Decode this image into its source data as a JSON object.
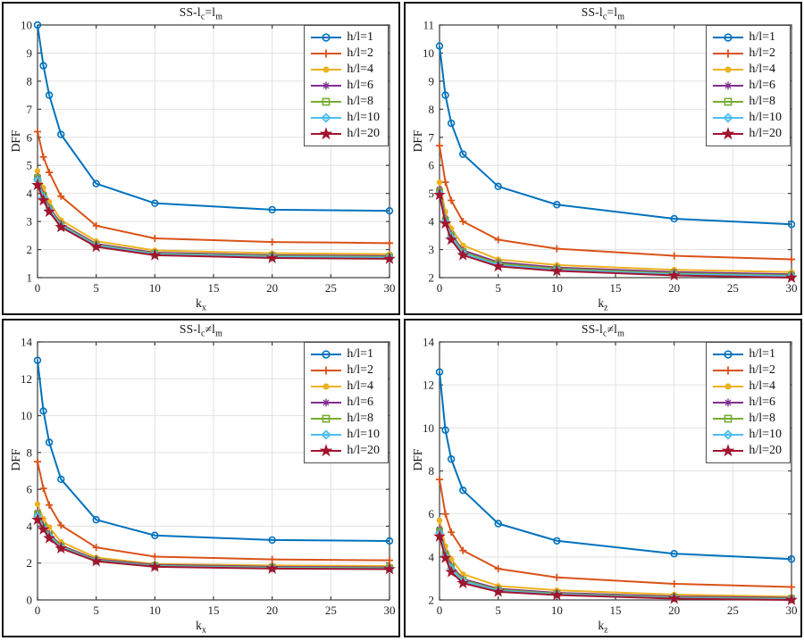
{
  "figure": {
    "ylabel": "DFF",
    "grid_color": "#e2e2e2",
    "axis_color": "#3d3d3d",
    "panel_border_color": "#0d0d0d"
  },
  "chart_data": {
    "note": "see charts[] — four line charts sharing series structure"
  },
  "charts": [
    {
      "type": "line",
      "title": {
        "prefix": "SS-l",
        "sub1": "c",
        "mid": "=l",
        "sub2": "m"
      },
      "xlabel": {
        "base": "k",
        "sub": "x"
      },
      "ylabel": "DFF",
      "xlim": [
        0,
        30
      ],
      "ylim": [
        1,
        10
      ],
      "xticks": [
        0,
        5,
        10,
        15,
        20,
        25,
        30
      ],
      "yticks": [
        1,
        2,
        3,
        4,
        5,
        6,
        7,
        8,
        9,
        10
      ],
      "x": [
        0,
        0.5,
        1,
        2,
        5,
        10,
        20,
        30
      ],
      "series": [
        {
          "label": "h/l=1",
          "color": "#0072BD",
          "marker": "circle",
          "values": [
            10.0,
            8.55,
            7.5,
            6.1,
            4.35,
            3.65,
            3.42,
            3.38
          ]
        },
        {
          "label": "h/l=2",
          "color": "#D95319",
          "marker": "plus",
          "values": [
            6.2,
            5.3,
            4.75,
            3.9,
            2.85,
            2.4,
            2.27,
            2.23
          ]
        },
        {
          "label": "h/l=4",
          "color": "#EDB120",
          "marker": "dot",
          "values": [
            4.8,
            4.2,
            3.7,
            3.05,
            2.3,
            1.97,
            1.87,
            1.84
          ]
        },
        {
          "label": "h/l=6",
          "color": "#7E2F8E",
          "marker": "asterisk",
          "values": [
            4.6,
            3.97,
            3.5,
            2.92,
            2.2,
            1.89,
            1.8,
            1.77
          ]
        },
        {
          "label": "h/l=8",
          "color": "#77AC30",
          "marker": "square",
          "values": [
            4.55,
            3.92,
            3.46,
            2.88,
            2.17,
            1.86,
            1.77,
            1.74
          ]
        },
        {
          "label": "h/l=10",
          "color": "#4DBEEE",
          "marker": "diamond",
          "values": [
            4.48,
            3.86,
            3.42,
            2.85,
            2.14,
            1.83,
            1.74,
            1.71
          ]
        },
        {
          "label": "h/l=20",
          "color": "#A2142F",
          "marker": "star",
          "values": [
            4.3,
            3.75,
            3.35,
            2.8,
            2.1,
            1.8,
            1.7,
            1.67
          ]
        }
      ]
    },
    {
      "type": "line",
      "title": {
        "prefix": "SS-l",
        "sub1": "c",
        "mid": "=l",
        "sub2": "m"
      },
      "xlabel": {
        "base": "k",
        "sub": "z"
      },
      "ylabel": "DFF",
      "xlim": [
        0,
        30
      ],
      "ylim": [
        2,
        11
      ],
      "xticks": [
        0,
        5,
        10,
        15,
        20,
        25,
        30
      ],
      "yticks": [
        2,
        3,
        4,
        5,
        6,
        7,
        8,
        9,
        10,
        11
      ],
      "x": [
        0,
        0.5,
        1,
        2,
        5,
        10,
        20,
        30
      ],
      "series": [
        {
          "label": "h/l=1",
          "color": "#0072BD",
          "marker": "circle",
          "values": [
            10.25,
            8.5,
            7.5,
            6.4,
            5.25,
            4.6,
            4.1,
            3.9
          ]
        },
        {
          "label": "h/l=2",
          "color": "#D95319",
          "marker": "plus",
          "values": [
            6.7,
            5.4,
            4.75,
            4.0,
            3.35,
            3.03,
            2.78,
            2.65
          ]
        },
        {
          "label": "h/l=4",
          "color": "#EDB120",
          "marker": "dot",
          "values": [
            5.4,
            4.35,
            3.75,
            3.15,
            2.65,
            2.45,
            2.28,
            2.2
          ]
        },
        {
          "label": "h/l=6",
          "color": "#7E2F8E",
          "marker": "asterisk",
          "values": [
            5.15,
            4.1,
            3.55,
            2.97,
            2.55,
            2.36,
            2.2,
            2.12
          ]
        },
        {
          "label": "h/l=8",
          "color": "#77AC30",
          "marker": "square",
          "values": [
            5.07,
            4.04,
            3.5,
            2.92,
            2.5,
            2.32,
            2.15,
            2.08
          ]
        },
        {
          "label": "h/l=10",
          "color": "#4DBEEE",
          "marker": "diamond",
          "values": [
            5.0,
            3.99,
            3.45,
            2.87,
            2.45,
            2.28,
            2.12,
            2.05
          ]
        },
        {
          "label": "h/l=20",
          "color": "#A2142F",
          "marker": "star",
          "values": [
            4.95,
            3.93,
            3.35,
            2.8,
            2.4,
            2.24,
            2.08,
            2.0
          ]
        }
      ]
    },
    {
      "type": "line",
      "title": {
        "prefix": "SS-l",
        "sub1": "c",
        "mid": "≠l",
        "sub2": "m"
      },
      "xlabel": {
        "base": "k",
        "sub": "x"
      },
      "ylabel": "DFF",
      "xlim": [
        0,
        30
      ],
      "ylim": [
        0,
        14
      ],
      "xticks": [
        0,
        5,
        10,
        15,
        20,
        25,
        30
      ],
      "yticks": [
        0,
        2,
        4,
        6,
        8,
        10,
        12,
        14
      ],
      "x": [
        0,
        0.5,
        1,
        2,
        5,
        10,
        20,
        30
      ],
      "series": [
        {
          "label": "h/l=1",
          "color": "#0072BD",
          "marker": "circle",
          "values": [
            13.0,
            10.25,
            8.55,
            6.55,
            4.35,
            3.5,
            3.25,
            3.2
          ]
        },
        {
          "label": "h/l=2",
          "color": "#D95319",
          "marker": "plus",
          "values": [
            7.5,
            6.05,
            5.15,
            4.05,
            2.85,
            2.35,
            2.2,
            2.15
          ]
        },
        {
          "label": "h/l=4",
          "color": "#EDB120",
          "marker": "dot",
          "values": [
            5.2,
            4.4,
            3.95,
            3.15,
            2.3,
            1.95,
            1.87,
            1.84
          ]
        },
        {
          "label": "h/l=6",
          "color": "#7E2F8E",
          "marker": "asterisk",
          "values": [
            4.75,
            4.05,
            3.6,
            2.95,
            2.2,
            1.9,
            1.8,
            1.77
          ]
        },
        {
          "label": "h/l=8",
          "color": "#77AC30",
          "marker": "square",
          "values": [
            4.65,
            3.97,
            3.52,
            2.9,
            2.16,
            1.86,
            1.76,
            1.73
          ]
        },
        {
          "label": "h/l=10",
          "color": "#4DBEEE",
          "marker": "diamond",
          "values": [
            4.55,
            3.9,
            3.45,
            2.85,
            2.13,
            1.83,
            1.73,
            1.7
          ]
        },
        {
          "label": "h/l=20",
          "color": "#A2142F",
          "marker": "star",
          "values": [
            4.35,
            3.83,
            3.35,
            2.8,
            2.1,
            1.8,
            1.7,
            1.67
          ]
        }
      ]
    },
    {
      "type": "line",
      "title": {
        "prefix": "SS-l",
        "sub1": "c",
        "mid": "≠l",
        "sub2": "m"
      },
      "xlabel": {
        "base": "k",
        "sub": "z"
      },
      "ylabel": "DFF",
      "xlim": [
        0,
        30
      ],
      "ylim": [
        2,
        14
      ],
      "xticks": [
        0,
        5,
        10,
        15,
        20,
        25,
        30
      ],
      "yticks": [
        2,
        4,
        6,
        8,
        10,
        12,
        14
      ],
      "x": [
        0,
        0.5,
        1,
        2,
        5,
        10,
        20,
        30
      ],
      "series": [
        {
          "label": "h/l=1",
          "color": "#0072BD",
          "marker": "circle",
          "values": [
            12.6,
            9.9,
            8.55,
            7.1,
            5.55,
            4.75,
            4.15,
            3.9
          ]
        },
        {
          "label": "h/l=2",
          "color": "#D95319",
          "marker": "plus",
          "values": [
            7.6,
            6.0,
            5.15,
            4.3,
            3.45,
            3.05,
            2.75,
            2.6
          ]
        },
        {
          "label": "h/l=4",
          "color": "#EDB120",
          "marker": "dot",
          "values": [
            5.7,
            4.5,
            3.9,
            3.2,
            2.65,
            2.45,
            2.25,
            2.15
          ]
        },
        {
          "label": "h/l=6",
          "color": "#7E2F8E",
          "marker": "asterisk",
          "values": [
            5.3,
            4.18,
            3.6,
            2.97,
            2.52,
            2.33,
            2.16,
            2.1
          ]
        },
        {
          "label": "h/l=8",
          "color": "#77AC30",
          "marker": "square",
          "values": [
            5.2,
            4.1,
            3.52,
            2.92,
            2.47,
            2.29,
            2.12,
            2.06
          ]
        },
        {
          "label": "h/l=10",
          "color": "#4DBEEE",
          "marker": "diamond",
          "values": [
            5.1,
            4.03,
            3.46,
            2.87,
            2.43,
            2.26,
            2.09,
            2.03
          ]
        },
        {
          "label": "h/l=20",
          "color": "#A2142F",
          "marker": "star",
          "values": [
            4.95,
            3.95,
            3.3,
            2.78,
            2.38,
            2.23,
            2.06,
            2.0
          ]
        }
      ]
    }
  ]
}
